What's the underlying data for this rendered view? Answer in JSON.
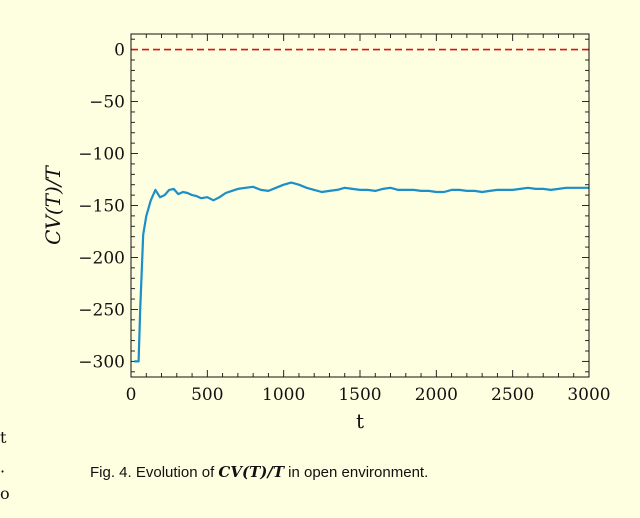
{
  "chart_data": {
    "type": "line",
    "xlabel": "t",
    "ylabel": "CV(T)/T",
    "xlim": [
      0,
      3000
    ],
    "ylim": [
      -315,
      15
    ],
    "xticks": [
      0,
      500,
      1000,
      1500,
      2000,
      2500,
      3000
    ],
    "xtick_labels": [
      "0",
      "500",
      "1000",
      "1500",
      "2000",
      "2500",
      "3000"
    ],
    "yticks": [
      0,
      -50,
      -100,
      -150,
      -200,
      -250,
      -300
    ],
    "ytick_labels": [
      "0",
      "−50",
      "−100",
      "−150",
      "−200",
      "−250",
      "−300"
    ],
    "grid": false,
    "series": [
      {
        "color": "#1a8fc8",
        "x": [
          20,
          50,
          60,
          80,
          100,
          130,
          160,
          190,
          220,
          250,
          280,
          310,
          340,
          370,
          400,
          430,
          460,
          500,
          540,
          580,
          620,
          660,
          700,
          750,
          800,
          850,
          900,
          950,
          1000,
          1050,
          1100,
          1150,
          1200,
          1250,
          1300,
          1350,
          1400,
          1450,
          1500,
          1550,
          1600,
          1650,
          1700,
          1750,
          1800,
          1850,
          1900,
          1950,
          2000,
          2050,
          2100,
          2150,
          2200,
          2250,
          2300,
          2350,
          2400,
          2450,
          2500,
          2550,
          2600,
          2650,
          2700,
          2750,
          2800,
          2850,
          2900,
          2950,
          3000
        ],
        "y": [
          -300,
          -300,
          -250,
          -178,
          -160,
          -145,
          -135,
          -142,
          -140,
          -135,
          -134,
          -139,
          -137,
          -138,
          -140,
          -141,
          -143,
          -142,
          -145,
          -142,
          -138,
          -136,
          -134,
          -133,
          -132,
          -135,
          -136,
          -133,
          -130,
          -128,
          -130,
          -133,
          -135,
          -137,
          -136,
          -135,
          -133,
          -134,
          -135,
          -135,
          -136,
          -134,
          -133,
          -135,
          -135,
          -135,
          -136,
          -136,
          -137,
          -137,
          -135,
          -135,
          -136,
          -136,
          -137,
          -136,
          -135,
          -135,
          -135,
          -134,
          -133,
          -134,
          -134,
          -135,
          -134,
          -133,
          -133,
          -133,
          -133
        ]
      }
    ],
    "reference_line": {
      "y": 0,
      "color": "#e01010",
      "style": "dashed"
    }
  },
  "caption": {
    "prefix": "Fig. 4.  Evolution of ",
    "math": "CV(T)/T",
    "suffix": " in open environment."
  },
  "margin_fragments": [
    "t",
    "·",
    "o"
  ]
}
